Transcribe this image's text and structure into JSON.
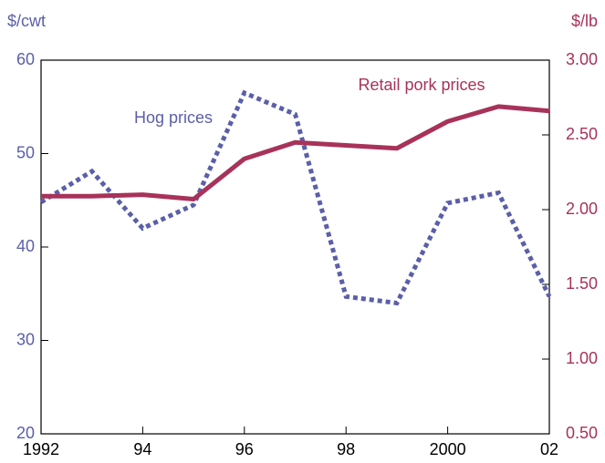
{
  "chart_data": {
    "type": "line",
    "y_label": "$/cwt",
    "y2_label": "$/lb",
    "x": [
      1992,
      1993,
      1994,
      1995,
      1996,
      1997,
      1998,
      1999,
      2000,
      2001,
      2002
    ],
    "series": [
      {
        "name": "Hog prices",
        "color": "#5b5fa8",
        "dash": "dotted",
        "values": [
          44.8,
          48.1,
          42.0,
          44.5,
          56.5,
          54.2,
          34.7,
          34.0,
          44.7,
          45.8,
          34.7
        ]
      },
      {
        "name": "Retail pork prices",
        "color": "#a8325a",
        "axis": "y2",
        "values": [
          2.09,
          2.09,
          2.1,
          2.07,
          2.34,
          2.45,
          2.43,
          2.41,
          2.59,
          2.69,
          2.66
        ]
      }
    ],
    "xlim": [
      1992,
      2002
    ],
    "xticks": [
      1992,
      {
        "value": 1994,
        "label": "94"
      },
      {
        "value": 1996,
        "label": "96"
      },
      {
        "value": 1998,
        "label": "98"
      },
      2000,
      {
        "value": 2002,
        "label": "02"
      }
    ],
    "ylim": [
      20,
      60
    ],
    "yticks": [
      20,
      30,
      40,
      50,
      60
    ],
    "y2lim": [
      0.5,
      3.0
    ],
    "y2ticks": [
      {
        "value": 0.5,
        "label": "0.50"
      },
      {
        "value": 1.0,
        "label": "1.00"
      },
      {
        "value": 1.5,
        "label": "1.50"
      },
      {
        "value": 2.0,
        "label": "2.00"
      },
      {
        "value": 2.5,
        "label": "2.50"
      },
      {
        "value": 3.0,
        "label": "3.00"
      }
    ]
  }
}
